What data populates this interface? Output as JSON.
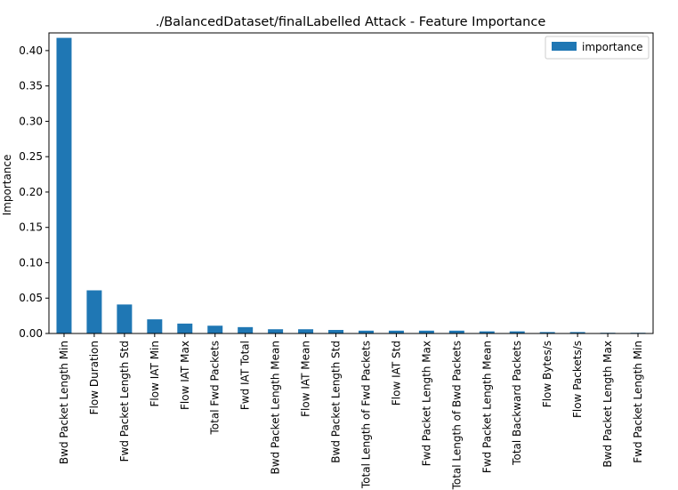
{
  "chart_data": {
    "type": "bar",
    "title": "./BalancedDataset/finalLabelled Attack - Feature Importance",
    "xlabel": "",
    "ylabel": "Importance",
    "ylim": [
      0,
      0.425
    ],
    "yticks": [
      "0.00",
      "0.05",
      "0.10",
      "0.15",
      "0.20",
      "0.25",
      "0.30",
      "0.35",
      "0.40"
    ],
    "grid": false,
    "legend_position": "top-right",
    "bar_color": "#1f77b4",
    "categories": [
      "Bwd Packet Length Min",
      "Flow Duration",
      "Fwd Packet Length Std",
      "Flow IAT Min",
      "Flow IAT Max",
      "Total Fwd Packets",
      "Fwd IAT Total",
      "Bwd Packet Length Mean",
      "Flow IAT Mean",
      "Bwd Packet Length Std",
      "Total Length of Fwd Packets",
      "Flow IAT Std",
      "Fwd Packet Length Max",
      "Total Length of Bwd Packets",
      "Fwd Packet Length Mean",
      "Total Backward Packets",
      "Flow Bytes/s",
      "Flow Packets/s",
      "Bwd Packet Length Max",
      "Fwd Packet Length Min"
    ],
    "series": [
      {
        "name": "importance",
        "values": [
          0.418,
          0.061,
          0.041,
          0.02,
          0.014,
          0.011,
          0.009,
          0.006,
          0.006,
          0.005,
          0.004,
          0.004,
          0.004,
          0.004,
          0.003,
          0.003,
          0.002,
          0.002,
          0.001,
          0.001
        ]
      }
    ]
  }
}
